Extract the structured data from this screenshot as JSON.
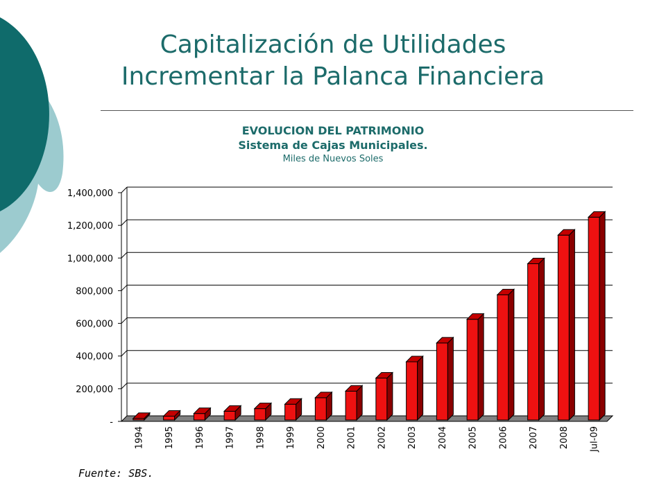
{
  "slide": {
    "title_line1": "Capitalización de Utilidades",
    "title_line2": "Incrementar la Palanca Financiera",
    "source": "Fuente: SBS.",
    "colors": {
      "accent_dark": "#0f6b6b",
      "accent_light": "#9ccbcf",
      "title": "#1c6b6a"
    }
  },
  "chart_data": {
    "type": "bar",
    "title": "EVOLUCION DEL PATRIMONIO",
    "subtitle": "Sistema de Cajas Municipales.",
    "unit_label": "Miles de Nuevos Soles",
    "categories": [
      "1994",
      "1995",
      "1996",
      "1997",
      "1998",
      "1999",
      "2000",
      "2001",
      "2002",
      "2003",
      "2004",
      "2005",
      "2006",
      "2007",
      "2008",
      "Jul-09"
    ],
    "values": [
      18000,
      32000,
      48000,
      62000,
      78000,
      105000,
      145000,
      185000,
      265000,
      365000,
      480000,
      625000,
      775000,
      965000,
      1140000,
      1250000
    ],
    "ylim": [
      0,
      1400000
    ],
    "yticks": [
      0,
      200000,
      400000,
      600000,
      800000,
      1000000,
      1200000,
      1400000
    ],
    "ytick_labels": [
      "-",
      "200,000",
      "400,000",
      "600,000",
      "800,000",
      "1,000,000",
      "1,200,000",
      "1,400,000"
    ],
    "grid": true,
    "bar_color": "#ee1111"
  }
}
